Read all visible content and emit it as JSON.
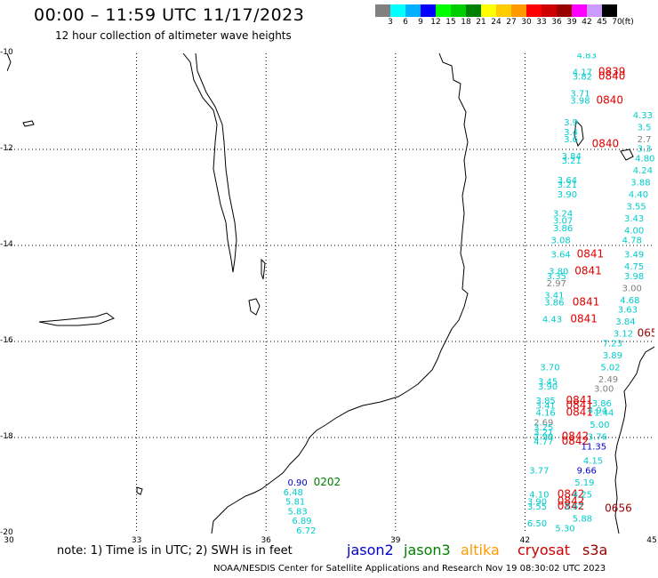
{
  "header": {
    "title": "00:00 – 11:59 UTC 11/17/2023",
    "subtitle": "12 hour collection of altimeter wave heights"
  },
  "legend": {
    "colors": [
      "#808080",
      "#00ffff",
      "#00b0ff",
      "#0000ff",
      "#00ff00",
      "#00cc00",
      "#008000",
      "#ffff00",
      "#ffcc00",
      "#ff9900",
      "#ff0000",
      "#cc0000",
      "#990000",
      "#ff00ff",
      "#cc99ff",
      "#000000"
    ],
    "labels": [
      "3",
      "6",
      "9",
      "12",
      "15",
      "18",
      "21",
      "24",
      "27",
      "30",
      "33",
      "36",
      "39",
      "42",
      "45",
      "70",
      "(ft)"
    ]
  },
  "axes": {
    "lat_labels": [
      "-10",
      "-12",
      "-14",
      "-16",
      "-18",
      "-20"
    ],
    "lon_labels": [
      "30",
      "33",
      "36",
      "39",
      "42",
      "45"
    ]
  },
  "footer": {
    "note": "note: 1) Time is in UTC; 2) SWH is in feet",
    "satellites": [
      {
        "name": "jason2",
        "color": "#0000cc"
      },
      {
        "name": "jason3",
        "color": "#008000"
      },
      {
        "name": "altika",
        "color": "#ff9900"
      },
      {
        "name": "cryosat",
        "color": "#cc0000"
      },
      {
        "name": "s3a",
        "color": "#990000"
      }
    ],
    "credit": "NOAA/NESDIS Center for Satellite Applications and Research    Nov 19 08:30:02 UTC 2023"
  },
  "points": [
    {
      "t": "4.83",
      "lon": 43.2,
      "lat": -10.1,
      "c": "#00cccc"
    },
    {
      "t": "4.17",
      "lon": 43.1,
      "lat": -10.45,
      "c": "#00cccc"
    },
    {
      "t": "0839",
      "lon": 43.7,
      "lat": -10.45,
      "c": "#e00000"
    },
    {
      "t": "3.82",
      "lon": 43.1,
      "lat": -10.55,
      "c": "#00cccc"
    },
    {
      "t": "0840",
      "lon": 43.7,
      "lat": -10.55,
      "c": "#e00000"
    },
    {
      "t": "3.71",
      "lon": 43.05,
      "lat": -10.9,
      "c": "#00cccc"
    },
    {
      "t": "3.98",
      "lon": 43.05,
      "lat": -11.05,
      "c": "#00cccc"
    },
    {
      "t": "0840",
      "lon": 43.65,
      "lat": -11.05,
      "c": "#e00000"
    },
    {
      "t": "3.9",
      "lon": 42.9,
      "lat": -11.5,
      "c": "#00cccc"
    },
    {
      "t": "3.4",
      "lon": 42.9,
      "lat": -11.7,
      "c": "#00cccc"
    },
    {
      "t": "3.6",
      "lon": 42.9,
      "lat": -11.85,
      "c": "#00cccc"
    },
    {
      "t": "0840",
      "lon": 43.55,
      "lat": -11.95,
      "c": "#e00000"
    },
    {
      "t": "3.84",
      "lon": 42.85,
      "lat": -12.2,
      "c": "#00cccc"
    },
    {
      "t": "3.21",
      "lon": 42.85,
      "lat": -12.3,
      "c": "#00cccc"
    },
    {
      "t": "3.64",
      "lon": 42.75,
      "lat": -12.7,
      "c": "#00cccc"
    },
    {
      "t": "3.21",
      "lon": 42.75,
      "lat": -12.8,
      "c": "#00cccc"
    },
    {
      "t": "3.90",
      "lon": 42.75,
      "lat": -13.0,
      "c": "#00cccc"
    },
    {
      "t": "3.24",
      "lon": 42.65,
      "lat": -13.4,
      "c": "#00cccc"
    },
    {
      "t": "3.07",
      "lon": 42.65,
      "lat": -13.55,
      "c": "#00cccc"
    },
    {
      "t": "3.86",
      "lon": 42.65,
      "lat": -13.7,
      "c": "#00cccc"
    },
    {
      "t": "3.08",
      "lon": 42.6,
      "lat": -13.95,
      "c": "#00cccc"
    },
    {
      "t": "3.64",
      "lon": 42.6,
      "lat": -14.25,
      "c": "#00cccc"
    },
    {
      "t": "0841",
      "lon": 43.2,
      "lat": -14.25,
      "c": "#e00000"
    },
    {
      "t": "3.80",
      "lon": 42.55,
      "lat": -14.6,
      "c": "#00cccc"
    },
    {
      "t": "0841",
      "lon": 43.15,
      "lat": -14.6,
      "c": "#e00000"
    },
    {
      "t": "3.35",
      "lon": 42.5,
      "lat": -14.7,
      "c": "#00cccc"
    },
    {
      "t": "2.97",
      "lon": 42.5,
      "lat": -14.85,
      "c": "#808080"
    },
    {
      "t": "3.41",
      "lon": 42.45,
      "lat": -15.1,
      "c": "#00cccc"
    },
    {
      "t": "3.86",
      "lon": 42.45,
      "lat": -15.25,
      "c": "#00cccc"
    },
    {
      "t": "0841",
      "lon": 43.1,
      "lat": -15.25,
      "c": "#e00000"
    },
    {
      "t": "4.43",
      "lon": 42.4,
      "lat": -15.6,
      "c": "#00cccc"
    },
    {
      "t": "0841",
      "lon": 43.05,
      "lat": -15.6,
      "c": "#e00000"
    },
    {
      "t": "3.70",
      "lon": 42.35,
      "lat": -16.6,
      "c": "#00cccc"
    },
    {
      "t": "3.45",
      "lon": 42.3,
      "lat": -16.9,
      "c": "#00cccc"
    },
    {
      "t": "3.90",
      "lon": 42.3,
      "lat": -17.0,
      "c": "#00cccc"
    },
    {
      "t": "3.85",
      "lon": 42.25,
      "lat": -17.3,
      "c": "#00cccc"
    },
    {
      "t": "0841",
      "lon": 42.95,
      "lat": -17.3,
      "c": "#e00000"
    },
    {
      "t": "3.41",
      "lon": 42.25,
      "lat": -17.4,
      "c": "#00cccc"
    },
    {
      "t": "0841",
      "lon": 42.95,
      "lat": -17.4,
      "c": "#e00000"
    },
    {
      "t": "4.16",
      "lon": 42.25,
      "lat": -17.55,
      "c": "#00cccc"
    },
    {
      "t": "0841",
      "lon": 42.95,
      "lat": -17.55,
      "c": "#e00000"
    },
    {
      "t": "2.69",
      "lon": 42.2,
      "lat": -17.75,
      "c": "#808080"
    },
    {
      "t": "3.25",
      "lon": 42.2,
      "lat": -17.85,
      "c": "#00cccc"
    },
    {
      "t": "3.21",
      "lon": 42.2,
      "lat": -17.95,
      "c": "#00cccc"
    },
    {
      "t": "2.99",
      "lon": 42.2,
      "lat": -18.05,
      "c": "#00cccc"
    },
    {
      "t": "0842",
      "lon": 42.85,
      "lat": -18.05,
      "c": "#e00000"
    },
    {
      "t": "4.77",
      "lon": 42.2,
      "lat": -18.15,
      "c": "#00cccc"
    },
    {
      "t": "0842",
      "lon": 42.85,
      "lat": -18.15,
      "c": "#e00000"
    },
    {
      "t": "3.77",
      "lon": 42.1,
      "lat": -18.75,
      "c": "#00cccc"
    },
    {
      "t": "4.10",
      "lon": 42.1,
      "lat": -19.25,
      "c": "#00cccc"
    },
    {
      "t": "0842",
      "lon": 42.75,
      "lat": -19.25,
      "c": "#e00000"
    },
    {
      "t": "3.90",
      "lon": 42.05,
      "lat": -19.4,
      "c": "#00cccc"
    },
    {
      "t": "0842",
      "lon": 42.75,
      "lat": -19.4,
      "c": "#e00000"
    },
    {
      "t": "3.55",
      "lon": 42.05,
      "lat": -19.5,
      "c": "#00cccc"
    },
    {
      "t": "0842",
      "lon": 42.75,
      "lat": -19.5,
      "c": "#e00000"
    },
    {
      "t": "3.67",
      "lon": 42.9,
      "lat": -19.5,
      "c": "#00cccc"
    },
    {
      "t": "6.50",
      "lon": 42.05,
      "lat": -19.85,
      "c": "#00cccc"
    },
    {
      "t": "5.30",
      "lon": 42.7,
      "lat": -19.95,
      "c": "#00cccc"
    },
    {
      "t": "5.88",
      "lon": 43.1,
      "lat": -19.75,
      "c": "#00cccc"
    },
    {
      "t": "3.49",
      "lon": 44.3,
      "lat": -14.25,
      "c": "#00cccc"
    },
    {
      "t": "4.75",
      "lon": 44.3,
      "lat": -14.5,
      "c": "#00cccc"
    },
    {
      "t": "3.98",
      "lon": 44.3,
      "lat": -14.7,
      "c": "#00cccc"
    },
    {
      "t": "3.00",
      "lon": 44.25,
      "lat": -14.95,
      "c": "#808080"
    },
    {
      "t": "4.68",
      "lon": 44.2,
      "lat": -15.2,
      "c": "#00cccc"
    },
    {
      "t": "3.63",
      "lon": 44.15,
      "lat": -15.4,
      "c": "#00cccc"
    },
    {
      "t": "3.84",
      "lon": 44.1,
      "lat": -15.65,
      "c": "#00cccc"
    },
    {
      "t": "3.12",
      "lon": 44.05,
      "lat": -15.9,
      "c": "#00cccc"
    },
    {
      "t": "7.23",
      "lon": 43.8,
      "lat": -16.1,
      "c": "#00cccc"
    },
    {
      "t": "3.89",
      "lon": 43.8,
      "lat": -16.35,
      "c": "#00cccc"
    },
    {
      "t": "5.02",
      "lon": 43.75,
      "lat": -16.6,
      "c": "#00cccc"
    },
    {
      "t": "2.49",
      "lon": 43.7,
      "lat": -16.85,
      "c": "#808080"
    },
    {
      "t": "3.00",
      "lon": 43.6,
      "lat": -17.05,
      "c": "#808080"
    },
    {
      "t": "3.86",
      "lon": 43.55,
      "lat": -17.35,
      "c": "#00cccc"
    },
    {
      "t": "4.94",
      "lon": 43.45,
      "lat": -17.5,
      "c": "#00cccc"
    },
    {
      "t": "1.44",
      "lon": 43.6,
      "lat": -17.55,
      "c": "#00cccc"
    },
    {
      "t": "5.00",
      "lon": 43.5,
      "lat": -17.8,
      "c": "#00cccc"
    },
    {
      "t": "3.76",
      "lon": 43.45,
      "lat": -18.05,
      "c": "#00cccc"
    },
    {
      "t": "11.35",
      "lon": 43.3,
      "lat": -18.25,
      "c": "#0000cc"
    },
    {
      "t": "4.15",
      "lon": 43.35,
      "lat": -18.55,
      "c": "#00cccc"
    },
    {
      "t": "9.66",
      "lon": 43.2,
      "lat": -18.75,
      "c": "#0000cc"
    },
    {
      "t": "5.19",
      "lon": 43.15,
      "lat": -19.0,
      "c": "#00cccc"
    },
    {
      "t": "4.25",
      "lon": 43.1,
      "lat": -19.25,
      "c": "#00cccc"
    },
    {
      "t": "4.33",
      "lon": 44.5,
      "lat": -11.35,
      "c": "#00cccc"
    },
    {
      "t": "3.5",
      "lon": 44.6,
      "lat": -11.6,
      "c": "#00cccc"
    },
    {
      "t": "2.7",
      "lon": 44.6,
      "lat": -11.85,
      "c": "#808080"
    },
    {
      "t": "3.3",
      "lon": 44.6,
      "lat": -12.05,
      "c": "#00cccc"
    },
    {
      "t": "4.80",
      "lon": 44.55,
      "lat": -12.25,
      "c": "#00cccc"
    },
    {
      "t": "4.24",
      "lon": 44.5,
      "lat": -12.5,
      "c": "#00cccc"
    },
    {
      "t": "3.88",
      "lon": 44.45,
      "lat": -12.75,
      "c": "#00cccc"
    },
    {
      "t": "4.40",
      "lon": 44.4,
      "lat": -13.0,
      "c": "#00cccc"
    },
    {
      "t": "3.55",
      "lon": 44.35,
      "lat": -13.25,
      "c": "#00cccc"
    },
    {
      "t": "3.43",
      "lon": 44.3,
      "lat": -13.5,
      "c": "#00cccc"
    },
    {
      "t": "4.00",
      "lon": 44.3,
      "lat": -13.75,
      "c": "#00cccc"
    },
    {
      "t": "4.78",
      "lon": 44.25,
      "lat": -13.95,
      "c": "#00cccc"
    },
    {
      "t": "065",
      "lon": 44.6,
      "lat": -15.9,
      "c": "#990000"
    },
    {
      "t": "0656",
      "lon": 43.85,
      "lat": -19.55,
      "c": "#990000"
    },
    {
      "t": "0.90",
      "lon": 36.5,
      "lat": -19.0,
      "c": "#0000cc"
    },
    {
      "t": "0202",
      "lon": 37.1,
      "lat": -19.0,
      "c": "#008000"
    },
    {
      "t": "6.48",
      "lon": 36.4,
      "lat": -19.2,
      "c": "#00cccc"
    },
    {
      "t": "5.81",
      "lon": 36.45,
      "lat": -19.4,
      "c": "#00cccc"
    },
    {
      "t": "5.83",
      "lon": 36.5,
      "lat": -19.6,
      "c": "#00cccc"
    },
    {
      "t": "6.89",
      "lon": 36.6,
      "lat": -19.8,
      "c": "#00cccc"
    },
    {
      "t": "6.72",
      "lon": 36.7,
      "lat": -20.0,
      "c": "#00cccc"
    }
  ]
}
